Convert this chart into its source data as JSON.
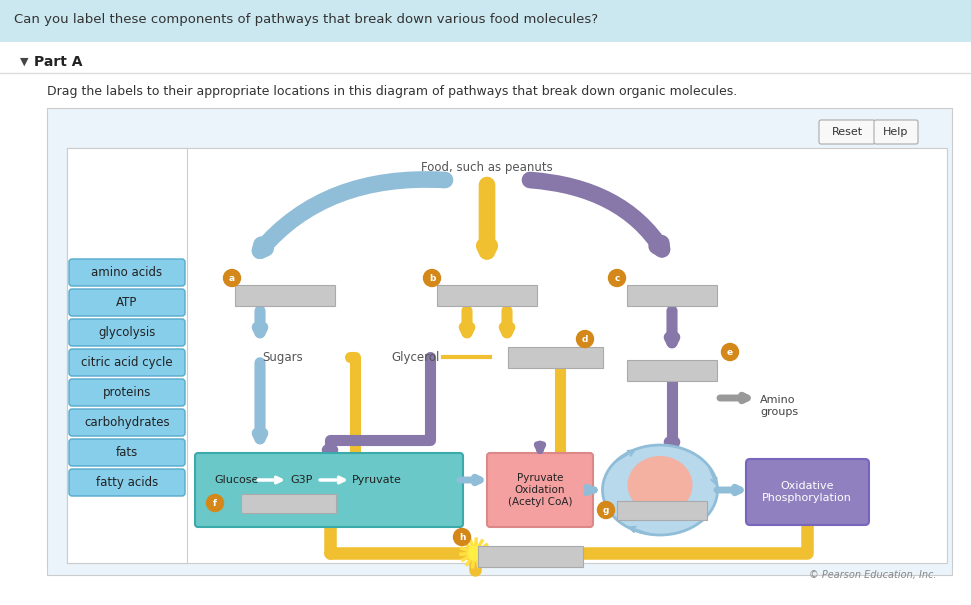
{
  "title_question": "Can you label these components of pathways that break down various food molecules?",
  "part_label": "Part A",
  "instruction": "Drag the labels to their appropriate locations in this diagram of pathways that break down organic molecules.",
  "labels_panel": [
    "amino acids",
    "ATP",
    "glycolysis",
    "citric acid cycle",
    "proteins",
    "carbohydrates",
    "fats",
    "fatty acids"
  ],
  "label_bg": "#87CEEB",
  "label_border": "#55AACC",
  "food_text": "Food, such as peanuts",
  "sugars_text": "Sugars",
  "glycerol_text": "Glycerol",
  "amino_groups_text": "Amino\ngroups",
  "glucose_text": "Glucose",
  "g3p_text": "G3P",
  "pyruvate_text": "Pyruvate",
  "pyruvate_ox_text": "Pyruvate\nOxidation\n(Acetyl CoA)",
  "oxidative_phos_text": "Oxidative\nPhosphorylation",
  "copyright": "© Pearson Education, Inc.",
  "badge_color": "#D4881A",
  "badge_text_color": "#FFFFFF",
  "glycolysis_box_color": "#6BC8C8",
  "pyruvate_box_color": "#F4A0A0",
  "citric_circle_color": "#F4B0A0",
  "citric_outer_color": "#B8D8EC",
  "oxidative_box_color": "#9080C0",
  "arrow_yellow": "#F0C030",
  "arrow_blue": "#90BDD8",
  "arrow_purple": "#8878AA",
  "arrow_gray": "#999999",
  "blank_box_color": "#C8C8C8",
  "reset_btn": "Reset",
  "help_btn": "Help",
  "header_bg": "#CBE8F0",
  "white_bg": "#FFFFFF",
  "outer_panel_bg": "#EAF4FA"
}
